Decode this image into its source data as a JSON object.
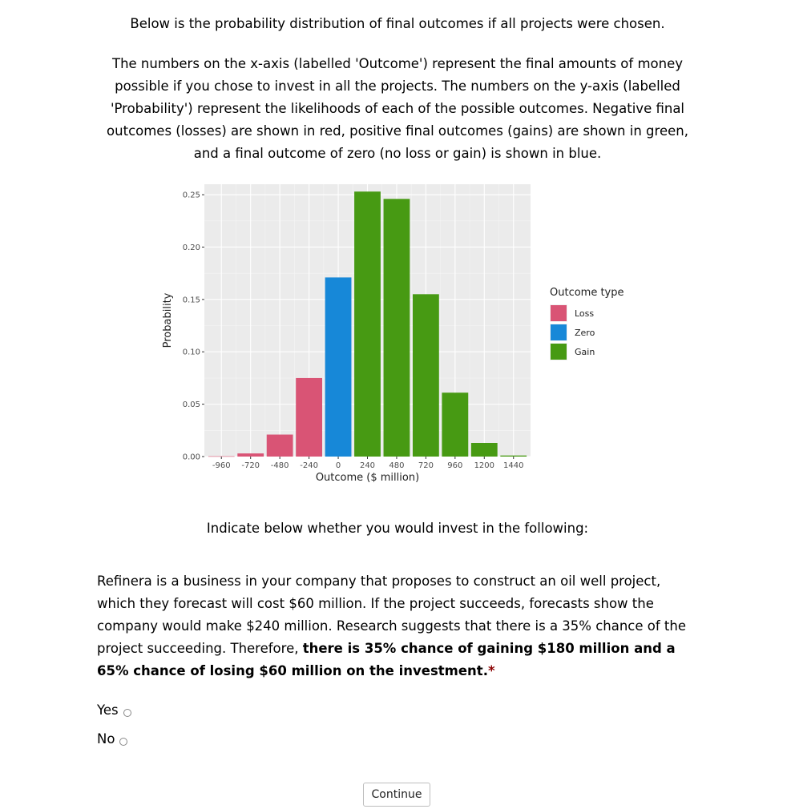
{
  "intro": {
    "line1": "Below is the probability distribution of final outcomes if all projects were chosen.",
    "line2": "The numbers on the x-axis (labelled 'Outcome') represent the final amounts of money possible if you chose to invest in all the projects. The numbers on the y-axis (labelled 'Probability') represent the likelihoods of each of the possible outcomes. Negative final outcomes (losses) are shown in red, positive final outcomes (gains) are shown in green, and a final outcome of zero (no loss or gain) is shown in blue."
  },
  "chart_data": {
    "type": "bar",
    "xlabel": "Outcome ($ million)",
    "ylabel": "Probability",
    "x": [
      -960,
      -720,
      -480,
      -240,
      0,
      240,
      480,
      720,
      960,
      1200,
      1440
    ],
    "values": [
      0.0003,
      0.003,
      0.021,
      0.075,
      0.171,
      0.253,
      0.246,
      0.155,
      0.061,
      0.013,
      0.001
    ],
    "types": [
      "Loss",
      "Loss",
      "Loss",
      "Loss",
      "Zero",
      "Gain",
      "Gain",
      "Gain",
      "Gain",
      "Gain",
      "Gain"
    ],
    "x_ticks": [
      "-960",
      "-720",
      "-480",
      "-240",
      "0",
      "240",
      "480",
      "720",
      "960",
      "1200",
      "1440"
    ],
    "y_ticks": [
      "0.00",
      "0.05",
      "0.10",
      "0.15",
      "0.20",
      "0.25"
    ],
    "ylim": [
      0,
      0.26
    ],
    "xlim": [
      -1100,
      1580
    ],
    "legend": {
      "title": "Outcome type",
      "position": "right",
      "items": [
        {
          "name": "Loss",
          "color": "#d95475"
        },
        {
          "name": "Zero",
          "color": "#1788d8"
        },
        {
          "name": "Gain",
          "color": "#479a13"
        }
      ]
    },
    "panel_color": "#ebebeb",
    "grid": true
  },
  "instruction": "Indicate below whether you would invest in the following:",
  "question": {
    "text": "Refinera is a business in your company that proposes to construct an oil well project, which they forecast will cost $60 million. If the project succeeds, forecasts show the company would make $240 million. Research suggests that there is a 35% chance of the project succeeding. Therefore, ",
    "bold": "there is 35% chance of gaining $180 million and a 65% chance of losing $60 million on the investment.",
    "required_mark": "*"
  },
  "options": {
    "yes": "Yes",
    "no": "No"
  },
  "continue_label": "Continue"
}
